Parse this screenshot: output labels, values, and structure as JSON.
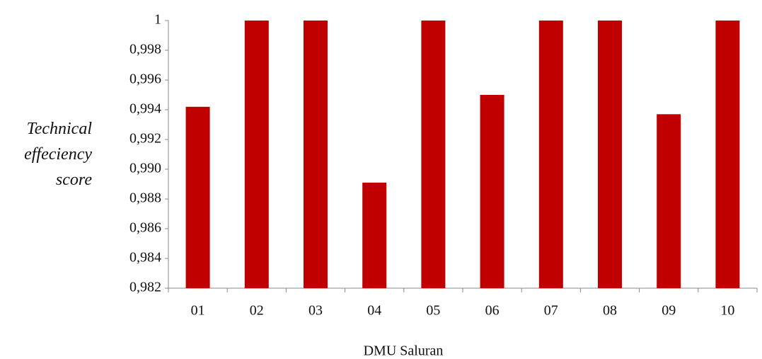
{
  "chart_data": {
    "type": "bar",
    "y_label": "Technical effeciency score",
    "x_label": "DMU Saluran",
    "categories": [
      "01",
      "02",
      "03",
      "04",
      "05",
      "06",
      "07",
      "08",
      "09",
      "10"
    ],
    "values": [
      0.9942,
      1,
      1,
      0.9891,
      1,
      0.995,
      1,
      1,
      0.9937,
      1
    ],
    "color": "#c00000",
    "ylim": [
      0.982,
      1
    ],
    "yticks": [
      {
        "value": 0.982,
        "label": "0,982"
      },
      {
        "value": 0.984,
        "label": "0,984"
      },
      {
        "value": 0.986,
        "label": "0,986"
      },
      {
        "value": 0.988,
        "label": "0,988"
      },
      {
        "value": 0.99,
        "label": "0,990"
      },
      {
        "value": 0.992,
        "label": "0,992"
      },
      {
        "value": 0.994,
        "label": "0,994"
      },
      {
        "value": 0.996,
        "label": "0,996"
      },
      {
        "value": 0.998,
        "label": "0,998"
      },
      1
    ],
    "grid": false
  }
}
